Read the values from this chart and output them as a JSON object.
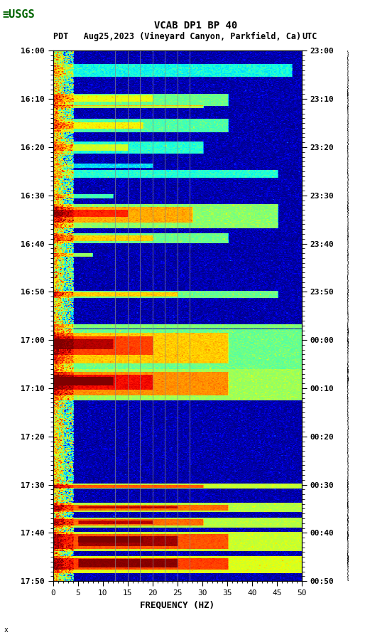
{
  "title_line1": "VCAB DP1 BP 40",
  "title_line2_left": "PDT   Aug25,2023 (Vineyard Canyon, Parkfield, Ca)",
  "title_line2_right": "UTC",
  "xlabel": "FREQUENCY (HZ)",
  "freq_min": 0,
  "freq_max": 50,
  "time_labels_left": [
    "16:00",
    "16:10",
    "16:20",
    "16:30",
    "16:40",
    "16:50",
    "17:00",
    "17:10",
    "17:20",
    "17:30",
    "17:40",
    "17:50"
  ],
  "time_labels_right": [
    "23:00",
    "23:10",
    "23:20",
    "23:30",
    "23:40",
    "23:50",
    "00:00",
    "00:10",
    "00:20",
    "00:30",
    "00:40",
    "00:50"
  ],
  "x_ticks": [
    0,
    5,
    10,
    15,
    20,
    25,
    30,
    35,
    40,
    45,
    50
  ],
  "bg_color": "#ffffff",
  "spectrogram_cmap": "jet",
  "vertical_line_color": "#888888",
  "vertical_lines_freq": [
    12.5,
    15.0,
    17.5,
    20.0,
    22.5,
    25.0,
    27.5
  ],
  "figsize": [
    5.52,
    8.93
  ],
  "logo_color": "#006400"
}
